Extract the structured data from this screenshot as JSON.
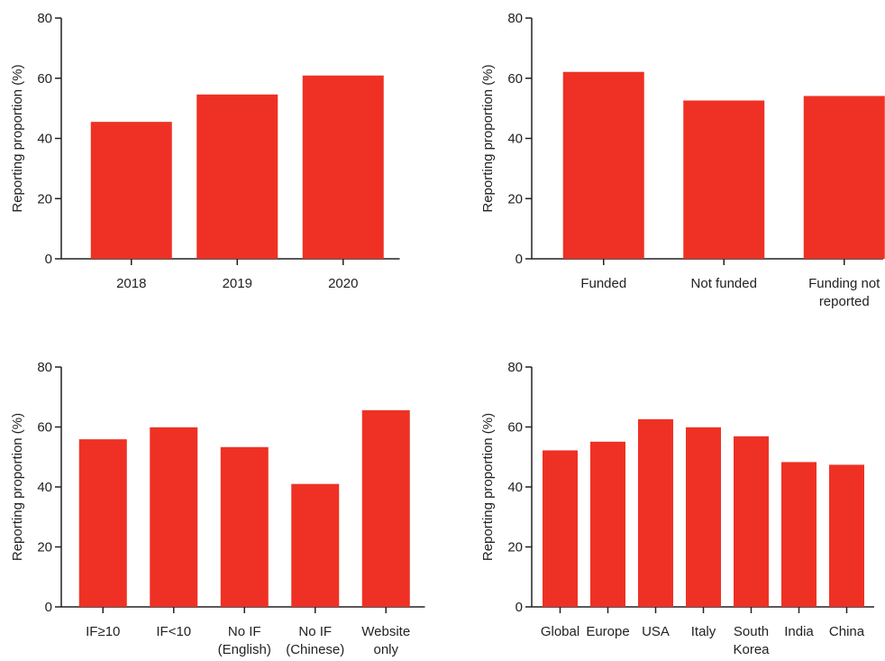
{
  "chart_data": [
    {
      "type": "bar",
      "categories": [
        [
          "2018"
        ],
        [
          "2019"
        ],
        [
          "2020"
        ]
      ],
      "values": [
        45.5,
        54.6,
        60.9
      ],
      "xlabel": "",
      "ylabel": "Reporting proportion (%)",
      "ylim": [
        0,
        80
      ],
      "yticks": [
        "0",
        "20",
        "40",
        "60",
        "80"
      ],
      "grid": false,
      "bar_color": "#EE3124"
    },
    {
      "type": "bar",
      "categories": [
        [
          "Funded"
        ],
        [
          "Not funded"
        ],
        [
          "Funding not",
          "reported"
        ]
      ],
      "values": [
        62.1,
        52.6,
        54.1
      ],
      "xlabel": "",
      "ylabel": "Reporting proportion (%)",
      "ylim": [
        0,
        80
      ],
      "yticks": [
        "0",
        "20",
        "40",
        "60",
        "80"
      ],
      "grid": false,
      "bar_color": "#EE3124"
    },
    {
      "type": "bar",
      "categories": [
        [
          "IF≥10"
        ],
        [
          "IF<10"
        ],
        [
          "No IF",
          "(English)"
        ],
        [
          "No IF",
          "(Chinese)"
        ],
        [
          "Website",
          "only"
        ]
      ],
      "values": [
        55.9,
        59.9,
        53.3,
        41.0,
        65.6
      ],
      "xlabel": "",
      "ylabel": "Reporting proportion (%)",
      "ylim": [
        0,
        80
      ],
      "yticks": [
        "0",
        "20",
        "40",
        "60",
        "80"
      ],
      "grid": false,
      "bar_color": "#EE3124"
    },
    {
      "type": "bar",
      "categories": [
        [
          "Global"
        ],
        [
          "Europe"
        ],
        [
          "USA"
        ],
        [
          "Italy"
        ],
        [
          "South",
          "Korea"
        ],
        [
          "India"
        ],
        [
          "China"
        ]
      ],
      "values": [
        52.2,
        55.1,
        62.6,
        59.9,
        56.9,
        48.3,
        47.4
      ],
      "xlabel": "",
      "ylabel": "Reporting proportion (%)",
      "ylim": [
        0,
        80
      ],
      "yticks": [
        "0",
        "20",
        "40",
        "60",
        "80"
      ],
      "grid": false,
      "bar_color": "#EE3124"
    }
  ]
}
